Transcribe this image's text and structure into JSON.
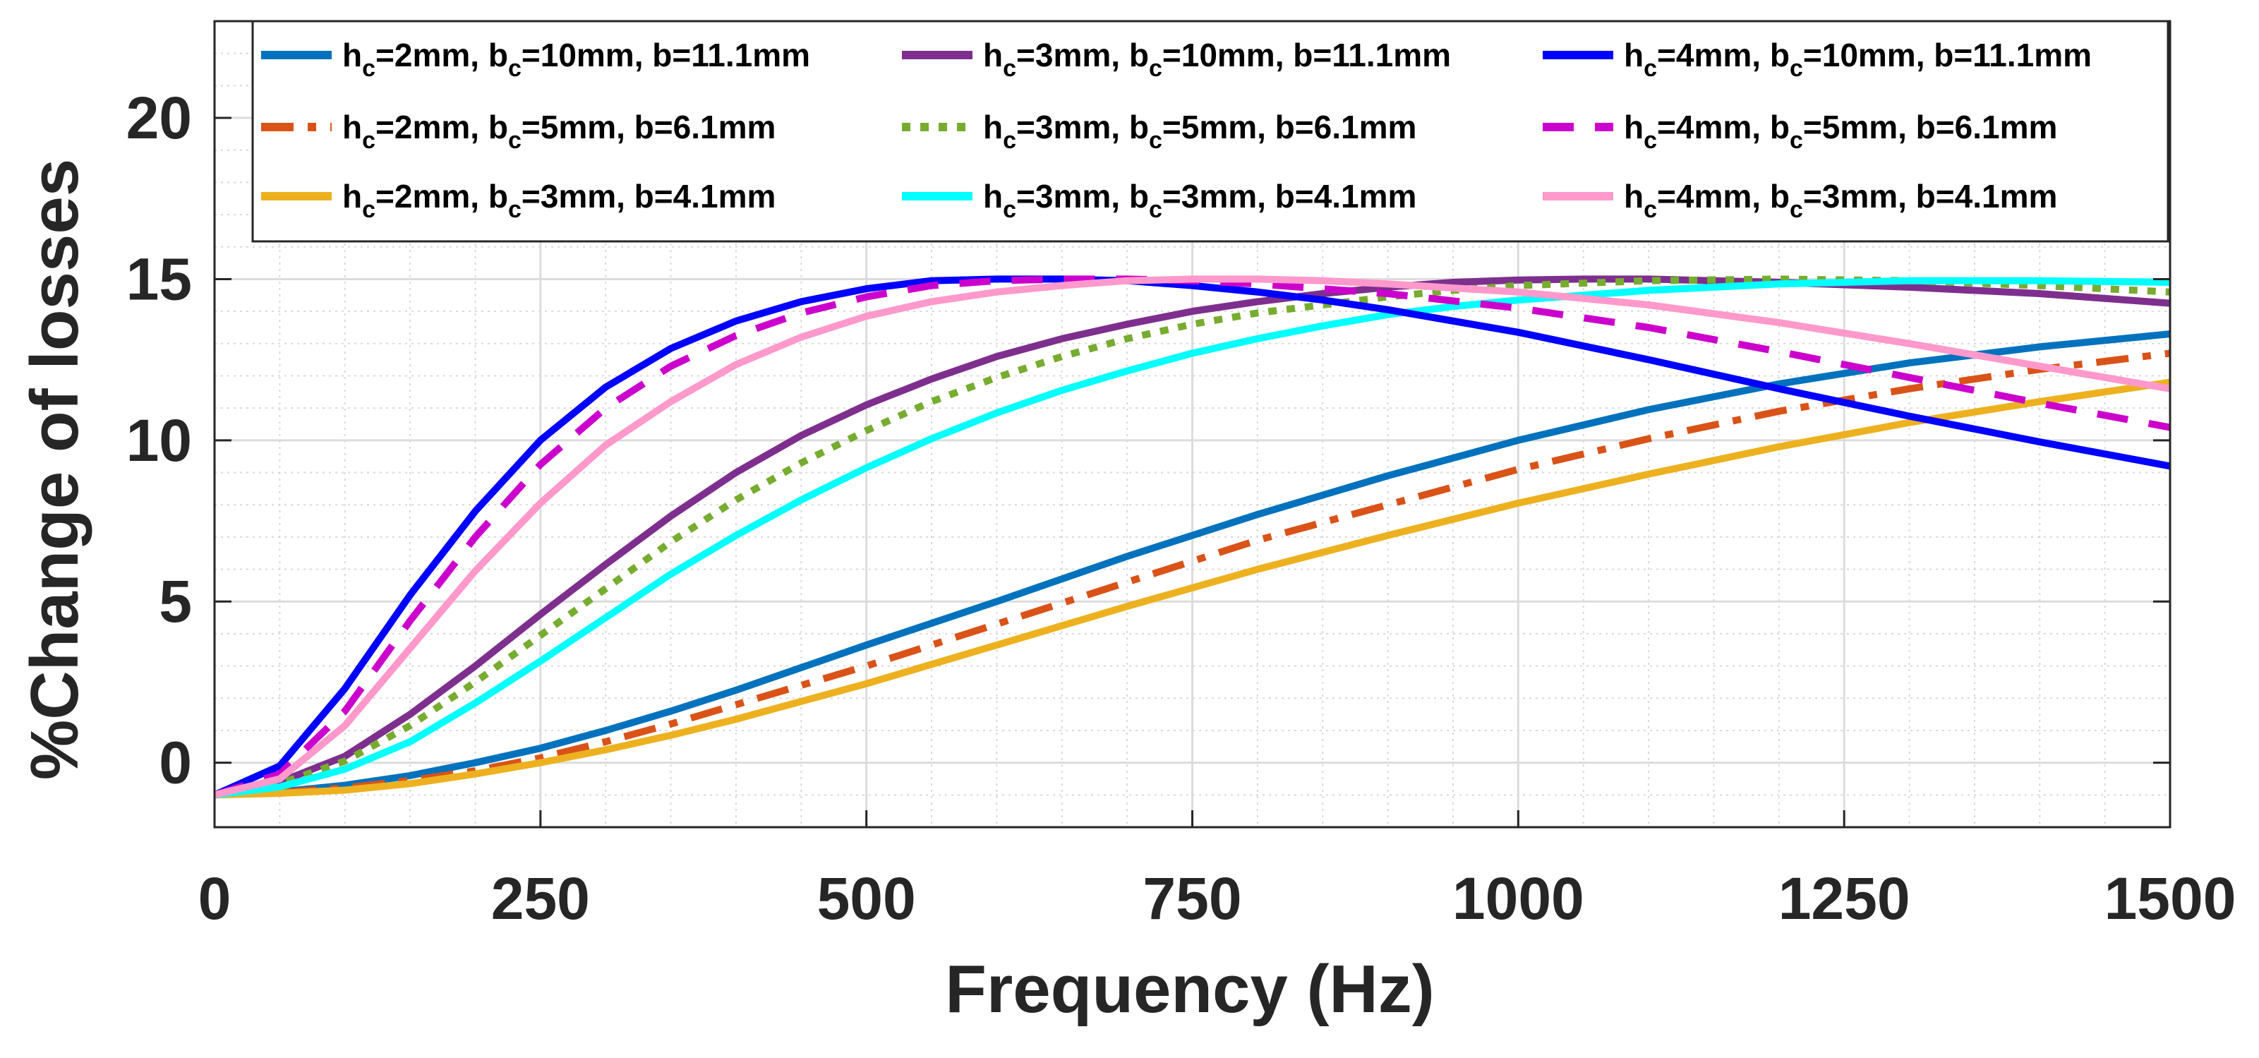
{
  "chart_data": {
    "type": "line",
    "title": "",
    "xlabel": "Frequency (Hz)",
    "ylabel": "%Change of losses",
    "xlim": [
      0,
      1500
    ],
    "ylim": [
      -2,
      23
    ],
    "grid": true,
    "minor_grid": true,
    "legend_position": "top, 3 columns",
    "x_ticks": [
      0,
      250,
      500,
      750,
      1000,
      1250,
      1500
    ],
    "x_tick_labels": [
      "0",
      "250",
      "500",
      "750",
      "1000",
      "1250",
      "1500"
    ],
    "y_ticks": [
      0,
      5,
      10,
      15,
      20
    ],
    "y_tick_labels": [
      "0",
      "5",
      "10",
      "15",
      "20"
    ],
    "series": [
      {
        "legend": {
          "h": "h",
          "hsub": "c",
          "mid": "=2mm, b",
          "bsub": "c",
          "rest": "=10mm, b=11.1mm"
        },
        "color": "#0072BD",
        "dash": "solid",
        "x": [
          0,
          50,
          100,
          150,
          200,
          250,
          300,
          350,
          400,
          450,
          500,
          600,
          700,
          800,
          900,
          1000,
          1100,
          1200,
          1300,
          1400,
          1500
        ],
        "y": [
          -1,
          -0.9,
          -0.7,
          -0.4,
          0,
          0.45,
          1,
          1.6,
          2.25,
          2.95,
          3.65,
          5.0,
          6.4,
          7.7,
          8.9,
          10.0,
          10.95,
          11.75,
          12.4,
          12.9,
          13.3
        ]
      },
      {
        "legend": {
          "h": "h",
          "hsub": "c",
          "mid": "=2mm, b",
          "bsub": "c",
          "rest": "=5mm, b=6.1mm"
        },
        "color": "#D95319",
        "dash": "dashdot",
        "x": [
          0,
          50,
          100,
          150,
          200,
          250,
          300,
          350,
          400,
          450,
          500,
          600,
          700,
          800,
          900,
          1000,
          1100,
          1200,
          1300,
          1400,
          1500
        ],
        "y": [
          -1,
          -0.92,
          -0.78,
          -0.55,
          -0.25,
          0.15,
          0.65,
          1.2,
          1.8,
          2.4,
          3.0,
          4.3,
          5.6,
          6.9,
          8.0,
          9.1,
          10.05,
          10.9,
          11.6,
          12.2,
          12.7
        ]
      },
      {
        "legend": {
          "h": "h",
          "hsub": "c",
          "mid": "=2mm, b",
          "bsub": "c",
          "rest": "=3mm, b=4.1mm"
        },
        "color": "#EDB120",
        "dash": "solid",
        "x": [
          0,
          50,
          100,
          150,
          200,
          250,
          300,
          350,
          400,
          450,
          500,
          600,
          700,
          800,
          900,
          1000,
          1100,
          1200,
          1300,
          1400,
          1500
        ],
        "y": [
          -1,
          -0.95,
          -0.85,
          -0.65,
          -0.35,
          0,
          0.4,
          0.85,
          1.35,
          1.9,
          2.45,
          3.65,
          4.85,
          6.0,
          7.05,
          8.05,
          8.95,
          9.8,
          10.55,
          11.2,
          11.8
        ]
      },
      {
        "legend": {
          "h": "h",
          "hsub": "c",
          "mid": "=3mm, b",
          "bsub": "c",
          "rest": "=10mm, b=11.1mm"
        },
        "color": "#7E2F8E",
        "dash": "solid",
        "x": [
          0,
          50,
          100,
          150,
          200,
          250,
          300,
          350,
          400,
          450,
          500,
          550,
          600,
          650,
          700,
          750,
          800,
          850,
          900,
          950,
          1000,
          1050,
          1100,
          1200,
          1300,
          1400,
          1500
        ],
        "y": [
          -1,
          -0.6,
          0.2,
          1.5,
          3.0,
          4.6,
          6.15,
          7.65,
          9.0,
          10.15,
          11.1,
          11.9,
          12.6,
          13.15,
          13.6,
          14.0,
          14.3,
          14.55,
          14.75,
          14.9,
          14.97,
          15.0,
          15.0,
          14.9,
          14.75,
          14.55,
          14.25
        ]
      },
      {
        "legend": {
          "h": "h",
          "hsub": "c",
          "mid": "=3mm, b",
          "bsub": "c",
          "rest": "=5mm, b=6.1mm"
        },
        "color": "#77AC30",
        "dash": "dotted",
        "x": [
          0,
          50,
          100,
          150,
          200,
          250,
          300,
          350,
          400,
          450,
          500,
          550,
          600,
          650,
          700,
          750,
          800,
          850,
          900,
          950,
          1000,
          1100,
          1200,
          1300,
          1400,
          1500
        ],
        "y": [
          -1,
          -0.65,
          0.05,
          1.15,
          2.5,
          3.95,
          5.4,
          6.85,
          8.15,
          9.3,
          10.3,
          11.2,
          11.95,
          12.6,
          13.15,
          13.6,
          13.95,
          14.2,
          14.45,
          14.65,
          14.8,
          14.95,
          15.0,
          14.95,
          14.8,
          14.6
        ]
      },
      {
        "legend": {
          "h": "h",
          "hsub": "c",
          "mid": "=3mm, b",
          "bsub": "c",
          "rest": "=3mm, b=4.1mm"
        },
        "color": "#00FFFF",
        "dash": "solid",
        "x": [
          0,
          50,
          100,
          150,
          200,
          250,
          300,
          350,
          400,
          450,
          500,
          550,
          600,
          650,
          700,
          750,
          800,
          850,
          900,
          950,
          1000,
          1100,
          1200,
          1300,
          1400,
          1500
        ],
        "y": [
          -1,
          -0.75,
          -0.2,
          0.65,
          1.85,
          3.15,
          4.5,
          5.85,
          7.05,
          8.15,
          9.15,
          10.05,
          10.85,
          11.55,
          12.15,
          12.7,
          13.15,
          13.55,
          13.9,
          14.15,
          14.35,
          14.65,
          14.85,
          14.95,
          14.95,
          14.9
        ]
      },
      {
        "legend": {
          "h": "h",
          "hsub": "c",
          "mid": "=4mm, b",
          "bsub": "c",
          "rest": "=10mm, b=11.1mm"
        },
        "color": "#0000FF",
        "dash": "solid",
        "x": [
          0,
          50,
          100,
          150,
          200,
          250,
          300,
          350,
          400,
          450,
          500,
          550,
          600,
          650,
          700,
          750,
          800,
          850,
          900,
          1000,
          1100,
          1200,
          1300,
          1400,
          1500
        ],
        "y": [
          -1,
          -0.1,
          2.3,
          5.2,
          7.8,
          10.0,
          11.65,
          12.85,
          13.7,
          14.3,
          14.7,
          14.95,
          15.0,
          15.0,
          14.95,
          14.8,
          14.6,
          14.35,
          14.05,
          13.35,
          12.5,
          11.6,
          10.75,
          9.95,
          9.2
        ]
      },
      {
        "legend": {
          "h": "h",
          "hsub": "c",
          "mid": "=4mm, b",
          "bsub": "c",
          "rest": "=5mm, b=6.1mm"
        },
        "color": "#CC00CC",
        "dash": "dashed",
        "x": [
          0,
          50,
          100,
          150,
          200,
          250,
          300,
          350,
          400,
          450,
          500,
          550,
          600,
          650,
          700,
          750,
          800,
          900,
          1000,
          1100,
          1200,
          1300,
          1400,
          1500
        ],
        "y": [
          -1,
          -0.35,
          1.6,
          4.4,
          7.0,
          9.25,
          11.0,
          12.3,
          13.25,
          13.95,
          14.45,
          14.8,
          14.95,
          15.0,
          15.0,
          14.95,
          14.85,
          14.55,
          14.1,
          13.5,
          12.75,
          11.95,
          11.15,
          10.4
        ]
      },
      {
        "legend": {
          "h": "h",
          "hsub": "c",
          "mid": "=4mm, b",
          "bsub": "c",
          "rest": "=3mm, b=4.1mm"
        },
        "color": "#FF99CC",
        "dash": "solid",
        "x": [
          0,
          50,
          100,
          150,
          200,
          250,
          300,
          350,
          400,
          450,
          500,
          550,
          600,
          650,
          700,
          750,
          800,
          850,
          900,
          1000,
          1100,
          1200,
          1300,
          1400,
          1500
        ],
        "y": [
          -1,
          -0.5,
          1.15,
          3.55,
          5.95,
          8.05,
          9.85,
          11.2,
          12.35,
          13.2,
          13.85,
          14.3,
          14.6,
          14.8,
          14.95,
          15.0,
          15.0,
          14.95,
          14.85,
          14.6,
          14.2,
          13.65,
          13.0,
          12.3,
          11.6
        ]
      }
    ]
  }
}
